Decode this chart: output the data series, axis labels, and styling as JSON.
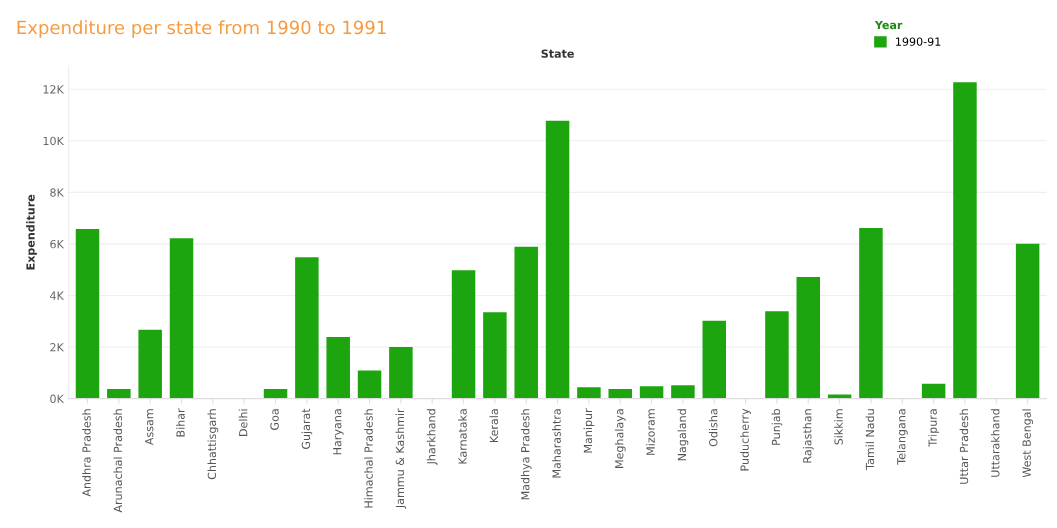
{
  "chart_data": {
    "type": "bar",
    "title": "Expenditure per state from 1990 to 1991",
    "xlabel": "State",
    "ylabel": "Expenditure",
    "legend_title": "Year",
    "categories": [
      "Andhra Pradesh",
      "Arunachal Pradesh",
      "Assam",
      "Bihar",
      "Chhattisgarh",
      "Delhi",
      "Goa",
      "Gujarat",
      "Haryana",
      "Himachal Pradesh",
      "Jammu & Kashmir",
      "Jharkhand",
      "Karnataka",
      "Kerala",
      "Madhya Pradesh",
      "Maharashtra",
      "Manipur",
      "Meghalaya",
      "Mizoram",
      "Nagaland",
      "Odisha",
      "Puducherry",
      "Punjab",
      "Rajasthan",
      "Sikkim",
      "Tamil Nadu",
      "Telangana",
      "Tripura",
      "Uttar Pradesh",
      "Uttarakhand",
      "West Bengal"
    ],
    "series": [
      {
        "name": "1990-91",
        "color": "#1ca50e",
        "values": [
          6580,
          370,
          2670,
          6220,
          null,
          null,
          370,
          5480,
          2390,
          1090,
          2000,
          null,
          4980,
          3350,
          5890,
          10780,
          440,
          370,
          480,
          520,
          3020,
          null,
          3390,
          4720,
          160,
          6620,
          null,
          580,
          12270,
          null,
          6010
        ]
      }
    ],
    "ylim": [
      0,
      12900
    ],
    "yticks": [
      {
        "value": 0,
        "label": "0K"
      },
      {
        "value": 2000,
        "label": "2K"
      },
      {
        "value": 4000,
        "label": "4K"
      },
      {
        "value": 6000,
        "label": "6K"
      },
      {
        "value": 8000,
        "label": "8K"
      },
      {
        "value": 10000,
        "label": "10K"
      },
      {
        "value": 12000,
        "label": "12K"
      }
    ],
    "grid": "y",
    "legend": "top right"
  }
}
